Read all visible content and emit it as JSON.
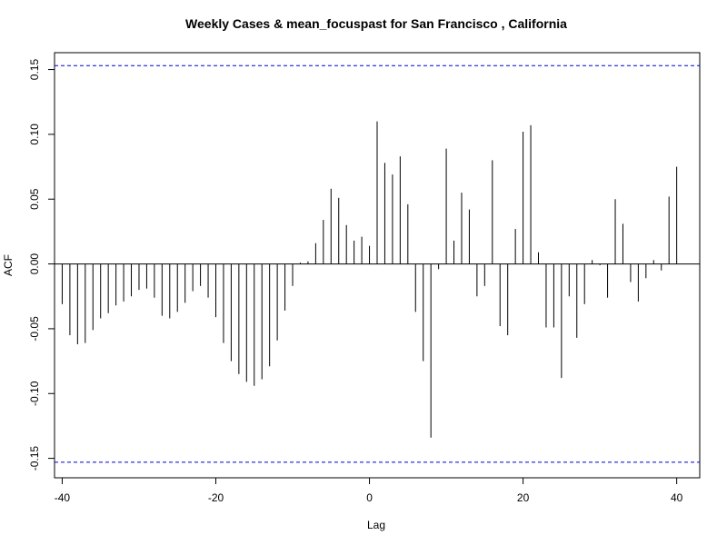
{
  "chart_data": {
    "type": "bar",
    "title": "Weekly Cases & mean_focuspast for San Francisco , California",
    "xlabel": "Lag",
    "ylabel": "ACF",
    "xlim": [
      -41,
      43
    ],
    "ylim": [
      -0.165,
      0.163
    ],
    "x_ticks": [
      -40,
      -20,
      0,
      20,
      40
    ],
    "x_tick_labels": [
      "-40",
      "-20",
      "0",
      "20",
      "40"
    ],
    "y_ticks": [
      -0.15,
      -0.1,
      -0.05,
      0.0,
      0.05,
      0.1,
      0.15
    ],
    "y_tick_labels": [
      "-0.15",
      "-0.10",
      "-0.05",
      "0.00",
      "0.05",
      "0.10",
      "0.15"
    ],
    "confidence_bound": 0.153,
    "colors": {
      "bars": "#000000",
      "bounds": "#0000cc",
      "zero_line": "#000000"
    },
    "x": [
      -40,
      -39,
      -38,
      -37,
      -36,
      -35,
      -34,
      -33,
      -32,
      -31,
      -30,
      -29,
      -28,
      -27,
      -26,
      -25,
      -24,
      -23,
      -22,
      -21,
      -20,
      -19,
      -18,
      -17,
      -16,
      -15,
      -14,
      -13,
      -12,
      -11,
      -10,
      -9,
      -8,
      -7,
      -6,
      -5,
      -4,
      -3,
      -2,
      -1,
      0,
      1,
      2,
      3,
      4,
      5,
      6,
      7,
      8,
      9,
      10,
      11,
      12,
      13,
      14,
      15,
      16,
      17,
      18,
      19,
      20,
      21,
      22,
      23,
      24,
      25,
      26,
      27,
      28,
      29,
      30,
      31,
      32,
      33,
      34,
      35,
      36,
      37,
      38,
      39,
      40
    ],
    "values": [
      -0.031,
      -0.055,
      -0.062,
      -0.061,
      -0.051,
      -0.042,
      -0.038,
      -0.032,
      -0.029,
      -0.025,
      -0.02,
      -0.019,
      -0.026,
      -0.04,
      -0.042,
      -0.037,
      -0.03,
      -0.021,
      -0.017,
      -0.026,
      -0.041,
      -0.061,
      -0.075,
      -0.085,
      -0.091,
      -0.094,
      -0.089,
      -0.079,
      -0.059,
      -0.036,
      -0.017,
      0.001,
      0.002,
      0.016,
      0.034,
      0.058,
      0.051,
      0.03,
      0.018,
      0.021,
      0.014,
      0.11,
      0.078,
      0.069,
      0.083,
      0.046,
      -0.037,
      -0.075,
      -0.134,
      -0.004,
      0.089,
      0.018,
      0.055,
      0.042,
      -0.025,
      -0.017,
      0.08,
      -0.048,
      -0.055,
      0.027,
      0.102,
      0.107,
      0.009,
      -0.049,
      -0.049,
      -0.088,
      -0.025,
      -0.057,
      -0.031,
      0.003,
      -0.001,
      -0.026,
      0.05,
      0.031,
      -0.014,
      -0.029,
      -0.011,
      0.003,
      -0.005,
      0.052,
      0.075
    ]
  }
}
